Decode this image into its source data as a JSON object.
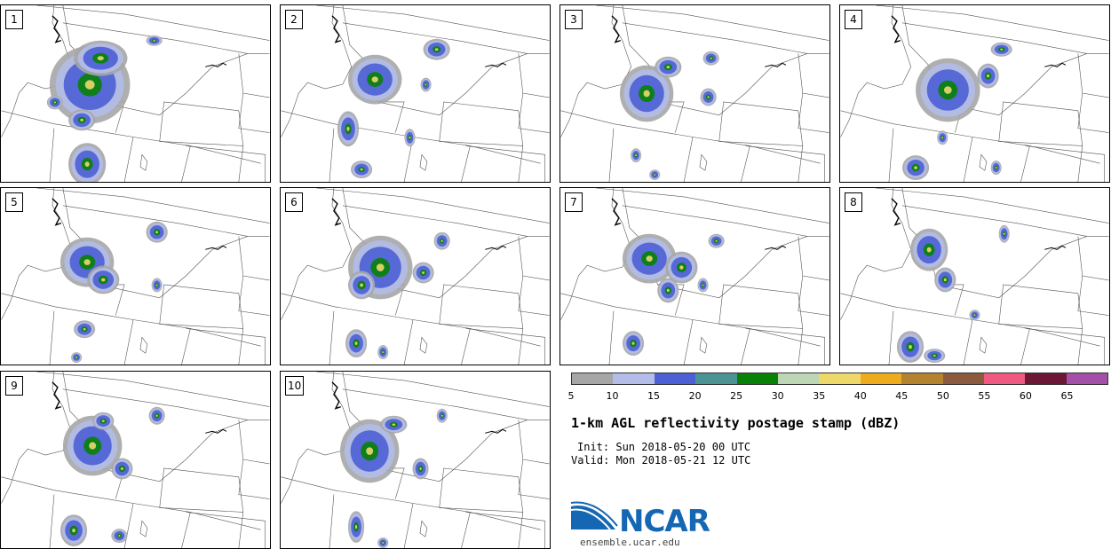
{
  "panels": [
    {
      "label": "1",
      "cells": [
        [
          0.33,
          0.45,
          0.15,
          0.22
        ],
        [
          0.37,
          0.3,
          0.1,
          0.1
        ],
        [
          0.3,
          0.65,
          0.05,
          0.06
        ],
        [
          0.32,
          0.9,
          0.07,
          0.12
        ],
        [
          0.57,
          0.2,
          0.03,
          0.03
        ],
        [
          0.2,
          0.55,
          0.03,
          0.04
        ]
      ]
    },
    {
      "label": "2",
      "cells": [
        [
          0.35,
          0.42,
          0.1,
          0.14
        ],
        [
          0.58,
          0.25,
          0.05,
          0.06
        ],
        [
          0.25,
          0.7,
          0.04,
          0.1
        ],
        [
          0.48,
          0.75,
          0.02,
          0.05
        ],
        [
          0.3,
          0.93,
          0.04,
          0.05
        ],
        [
          0.54,
          0.45,
          0.02,
          0.04
        ]
      ]
    },
    {
      "label": "3",
      "cells": [
        [
          0.32,
          0.5,
          0.1,
          0.16
        ],
        [
          0.4,
          0.35,
          0.05,
          0.06
        ],
        [
          0.56,
          0.3,
          0.03,
          0.04
        ],
        [
          0.55,
          0.52,
          0.03,
          0.05
        ],
        [
          0.28,
          0.85,
          0.02,
          0.04
        ],
        [
          0.35,
          0.96,
          0.02,
          0.03
        ]
      ]
    },
    {
      "label": "4",
      "cells": [
        [
          0.4,
          0.48,
          0.12,
          0.18
        ],
        [
          0.55,
          0.4,
          0.04,
          0.07
        ],
        [
          0.6,
          0.25,
          0.04,
          0.04
        ],
        [
          0.28,
          0.92,
          0.05,
          0.07
        ],
        [
          0.38,
          0.75,
          0.02,
          0.04
        ],
        [
          0.58,
          0.92,
          0.02,
          0.04
        ]
      ]
    },
    {
      "label": "5",
      "cells": [
        [
          0.32,
          0.42,
          0.1,
          0.14
        ],
        [
          0.58,
          0.25,
          0.04,
          0.06
        ],
        [
          0.38,
          0.52,
          0.06,
          0.08
        ],
        [
          0.31,
          0.8,
          0.04,
          0.05
        ],
        [
          0.58,
          0.55,
          0.02,
          0.04
        ],
        [
          0.28,
          0.96,
          0.02,
          0.03
        ]
      ]
    },
    {
      "label": "6",
      "cells": [
        [
          0.37,
          0.45,
          0.12,
          0.18
        ],
        [
          0.3,
          0.55,
          0.05,
          0.08
        ],
        [
          0.53,
          0.48,
          0.04,
          0.06
        ],
        [
          0.6,
          0.3,
          0.03,
          0.05
        ],
        [
          0.28,
          0.88,
          0.04,
          0.08
        ],
        [
          0.38,
          0.93,
          0.02,
          0.04
        ]
      ]
    },
    {
      "label": "7",
      "cells": [
        [
          0.33,
          0.4,
          0.1,
          0.14
        ],
        [
          0.45,
          0.45,
          0.06,
          0.09
        ],
        [
          0.4,
          0.58,
          0.04,
          0.07
        ],
        [
          0.58,
          0.3,
          0.03,
          0.04
        ],
        [
          0.27,
          0.88,
          0.04,
          0.07
        ],
        [
          0.53,
          0.55,
          0.02,
          0.04
        ]
      ]
    },
    {
      "label": "8",
      "cells": [
        [
          0.33,
          0.35,
          0.07,
          0.12
        ],
        [
          0.39,
          0.52,
          0.04,
          0.07
        ],
        [
          0.61,
          0.26,
          0.02,
          0.05
        ],
        [
          0.5,
          0.72,
          0.02,
          0.03
        ],
        [
          0.26,
          0.9,
          0.05,
          0.09
        ],
        [
          0.35,
          0.95,
          0.04,
          0.04
        ]
      ]
    },
    {
      "label": "9",
      "cells": [
        [
          0.34,
          0.42,
          0.11,
          0.17
        ],
        [
          0.38,
          0.28,
          0.04,
          0.05
        ],
        [
          0.58,
          0.25,
          0.03,
          0.05
        ],
        [
          0.45,
          0.55,
          0.04,
          0.06
        ],
        [
          0.27,
          0.9,
          0.05,
          0.09
        ],
        [
          0.44,
          0.93,
          0.03,
          0.04
        ]
      ]
    },
    {
      "label": "10",
      "cells": [
        [
          0.33,
          0.45,
          0.11,
          0.18
        ],
        [
          0.42,
          0.3,
          0.05,
          0.05
        ],
        [
          0.52,
          0.55,
          0.03,
          0.06
        ],
        [
          0.6,
          0.25,
          0.02,
          0.04
        ],
        [
          0.28,
          0.88,
          0.03,
          0.09
        ],
        [
          0.38,
          0.97,
          0.02,
          0.03
        ]
      ]
    }
  ],
  "colorbar": {
    "colors": [
      "#a6a6a6",
      "#b3bde8",
      "#4d5fd6",
      "#4a9496",
      "#078207",
      "#bcd6b6",
      "#eed86a",
      "#eeab1e",
      "#b5822f",
      "#8c5a3f",
      "#f05a82",
      "#6b1735",
      "#a550a8"
    ],
    "labels": [
      "5",
      "10",
      "15",
      "20",
      "25",
      "30",
      "35",
      "40",
      "45",
      "50",
      "55",
      "60",
      "65"
    ]
  },
  "title": "1-km AGL reflectivity postage stamp (dBZ)",
  "init": "Init: Sun 2018-05-20 00 UTC",
  "valid": "Valid: Mon 2018-05-21 12 UTC",
  "logo": {
    "text": "NCAR",
    "url": "ensemble.ucar.edu",
    "color": "#1667b3"
  }
}
